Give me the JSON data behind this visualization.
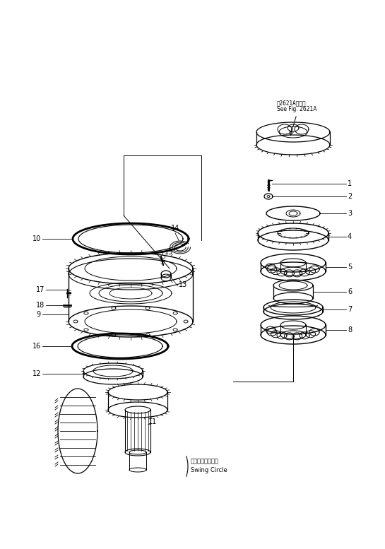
{
  "background_color": "#ffffff",
  "fig_width": 5.45,
  "fig_height": 7.77,
  "dpi": 100,
  "note_jp": "噣2621Aを参照",
  "note_en": "See Fig. 2621A",
  "swing_jp": "スイングサークル",
  "swing_en": "Swing Circle",
  "lc": "#000000"
}
